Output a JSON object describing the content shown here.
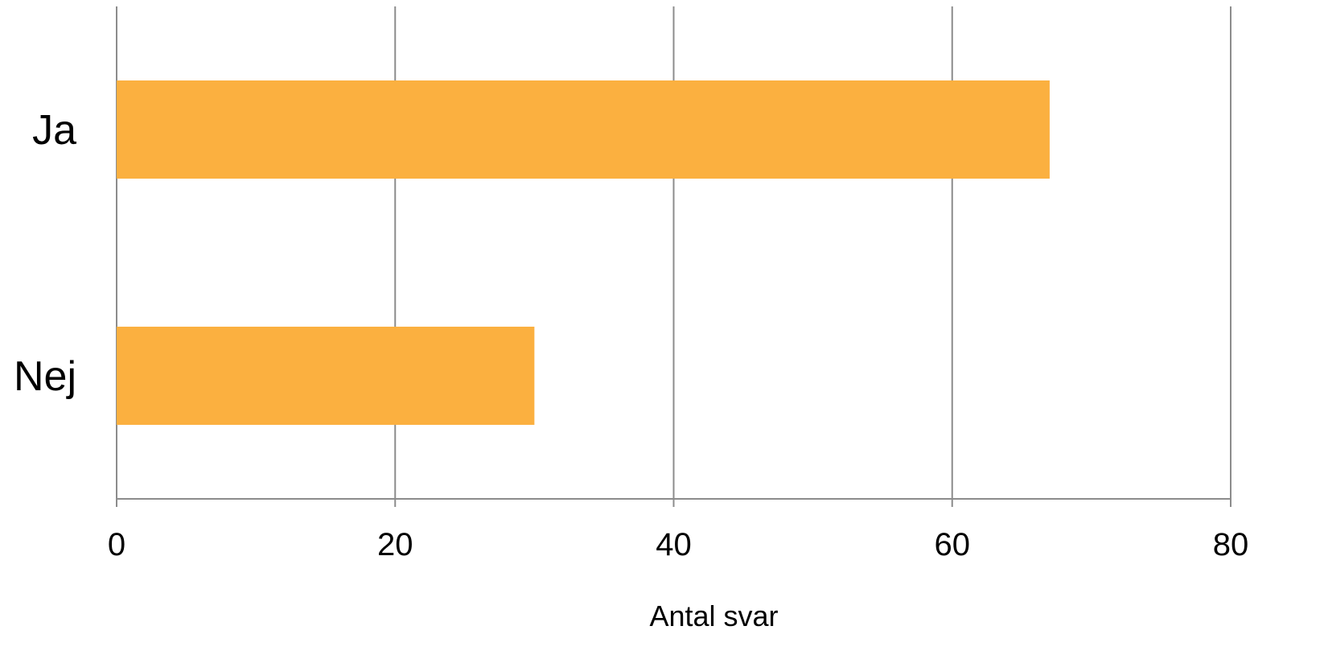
{
  "chart_data": {
    "type": "bar",
    "orientation": "horizontal",
    "categories": [
      "Ja",
      "Nej"
    ],
    "values": [
      67,
      30
    ],
    "xlabel": "Antal svar",
    "ylabel": "",
    "title": "",
    "xlim": [
      0,
      80
    ],
    "xticks": [
      0,
      20,
      40,
      60,
      80
    ],
    "tick_labels": [
      "0",
      "20",
      "40",
      "60",
      "80"
    ],
    "grid": true,
    "legend": "none",
    "colors": {
      "bar": "#FBB040",
      "grid": "#8C8C8C"
    }
  }
}
